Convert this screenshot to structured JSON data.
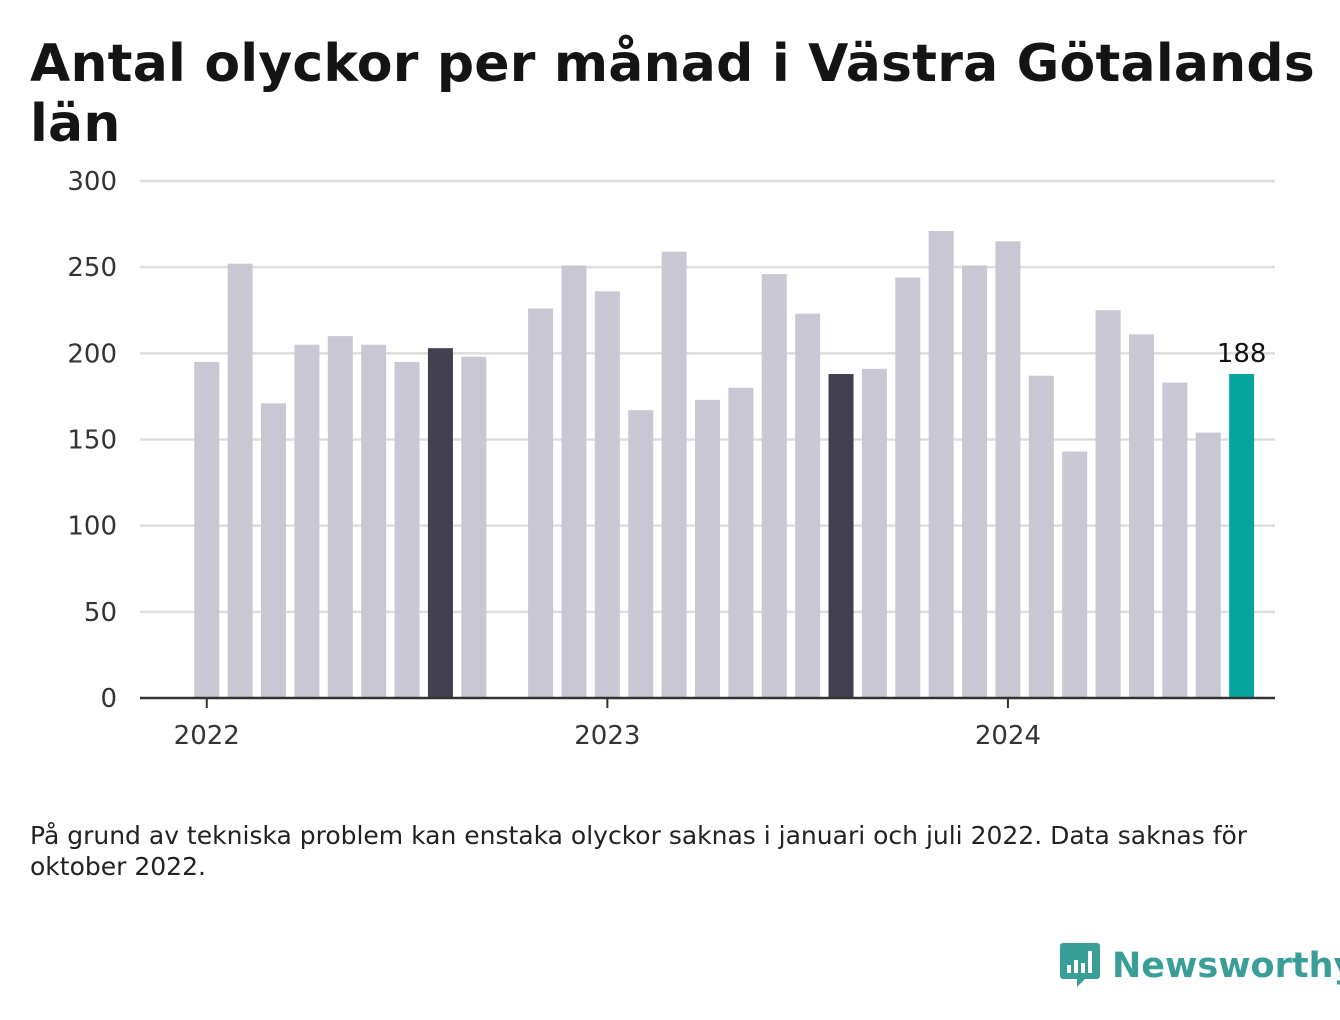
{
  "title": "Antal olyckor per månad i Västra Götalands län",
  "note": "På grund av tekniska problem kan enstaka olyckor saknas i januari och juli 2022. Data saknas för oktober 2022.",
  "brand": {
    "name": "Newsworthy",
    "color": "#3a9e98",
    "icon": "bar-chart-speech-bubble-icon"
  },
  "colors": {
    "default_bar": "#c8c7d3",
    "highlight_bar": "#42404e",
    "latest_bar": "#07a49c",
    "grid": "#dddddd",
    "axis": "#333333"
  },
  "chart_data": {
    "type": "bar",
    "title": "Antal olyckor per månad i Västra Götalands län",
    "xlabel": "",
    "ylabel": "",
    "ylim": [
      0,
      300
    ],
    "yticks": [
      0,
      50,
      100,
      150,
      200,
      250,
      300
    ],
    "xtick_labels": [
      {
        "label": "2022",
        "at": "2022-01"
      },
      {
        "label": "2023",
        "at": "2023-01"
      },
      {
        "label": "2024",
        "at": "2024-01"
      }
    ],
    "grid": true,
    "categories": [
      "2022-01",
      "2022-02",
      "2022-03",
      "2022-04",
      "2022-05",
      "2022-06",
      "2022-07",
      "2022-08",
      "2022-09",
      "2022-10",
      "2022-11",
      "2022-12",
      "2023-01",
      "2023-02",
      "2023-03",
      "2023-04",
      "2023-05",
      "2023-06",
      "2023-07",
      "2023-08",
      "2023-09",
      "2023-10",
      "2023-11",
      "2023-12",
      "2024-01",
      "2024-02",
      "2024-03",
      "2024-04",
      "2024-05",
      "2024-06",
      "2024-07",
      "2024-08"
    ],
    "values": [
      195,
      252,
      171,
      205,
      210,
      205,
      195,
      203,
      198,
      null,
      226,
      251,
      236,
      167,
      259,
      173,
      180,
      246,
      223,
      188,
      191,
      244,
      271,
      251,
      265,
      187,
      143,
      225,
      211,
      183,
      154,
      188
    ],
    "highlighted": [
      "2022-08",
      "2023-08"
    ],
    "latest": "2024-08",
    "data_labels": [
      {
        "category": "2024-08",
        "text": "188"
      }
    ]
  }
}
